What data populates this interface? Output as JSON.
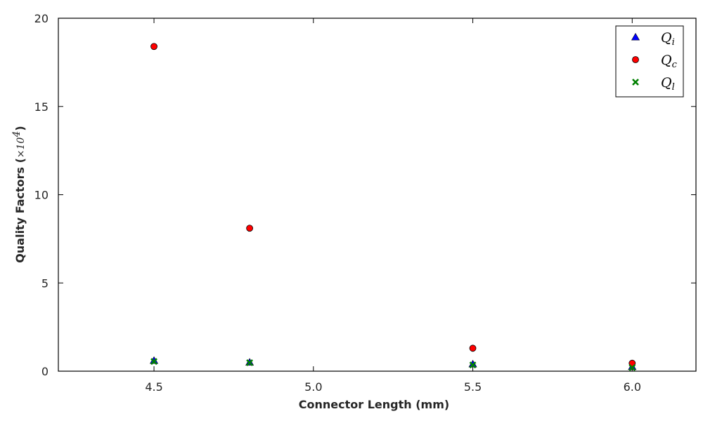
{
  "chart_data": {
    "type": "scatter",
    "xlabel": "Connector Length (mm)",
    "ylabel": "Quality Factors (",
    "ylabel_unit": "×10",
    "ylabel_exp": "4",
    "ylabel_close": ")",
    "xlim": [
      4.2,
      6.2
    ],
    "ylim": [
      0,
      20
    ],
    "x_ticks": [
      4.5,
      5.0,
      5.5,
      6.0
    ],
    "x_tick_labels": [
      "4.5",
      "5.0",
      "5.5",
      "6.0"
    ],
    "y_ticks": [
      0,
      5,
      10,
      15,
      20
    ],
    "y_tick_labels": [
      "0",
      "5",
      "10",
      "15",
      "20"
    ],
    "grid": false,
    "legend_position": "top-right",
    "series": [
      {
        "name": "Q",
        "sub": "i",
        "marker": "triangle",
        "color": "#0000ff",
        "x": [
          4.5,
          4.8,
          5.5,
          6.0
        ],
        "y": [
          0.6,
          0.5,
          0.4,
          0.25
        ]
      },
      {
        "name": "Q",
        "sub": "c",
        "marker": "circle",
        "color": "#ff0000",
        "x": [
          4.5,
          4.8,
          5.5,
          6.0
        ],
        "y": [
          18.4,
          8.1,
          1.3,
          0.45
        ]
      },
      {
        "name": "Q",
        "sub": "l",
        "marker": "x",
        "color": "#008000",
        "x": [
          4.5,
          4.8,
          5.5,
          6.0
        ],
        "y": [
          0.55,
          0.48,
          0.35,
          0.2
        ]
      }
    ]
  }
}
